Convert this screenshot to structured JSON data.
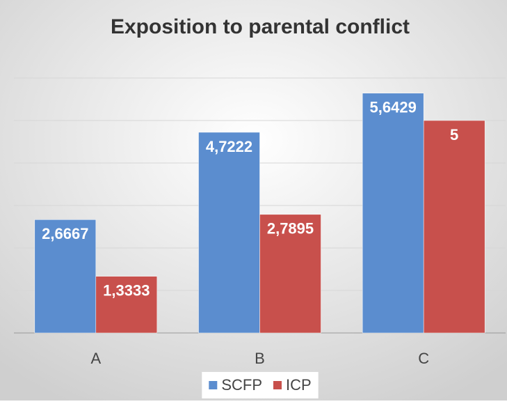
{
  "chart_data": {
    "type": "bar",
    "title": "Exposition to parental conflict",
    "categories": [
      "A",
      "B",
      "C"
    ],
    "series": [
      {
        "name": "SCFP",
        "color": "#5b8dcf",
        "values": [
          2.6667,
          4.7222,
          5.6429
        ],
        "value_labels": [
          "2,6667",
          "4,7222",
          "5,6429"
        ]
      },
      {
        "name": "ICP",
        "color": "#c8504c",
        "values": [
          1.3333,
          2.7895,
          5
        ],
        "value_labels": [
          "1,3333",
          "2,7895",
          "5"
        ]
      }
    ],
    "ylim": [
      0,
      6
    ],
    "yticks": [
      0,
      1,
      2,
      3,
      4,
      5,
      6
    ],
    "grid": true,
    "legend": "bottom"
  }
}
